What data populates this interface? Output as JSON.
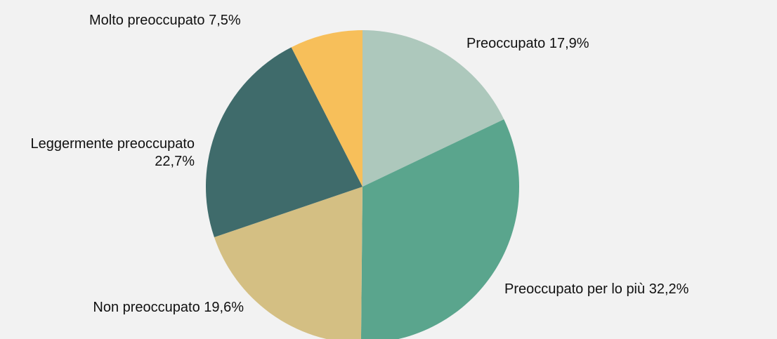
{
  "chart_data": {
    "type": "pie",
    "categories": [
      "Preoccupato",
      "Preoccupato per lo più",
      "Non preoccupato",
      "Leggermente preoccupato",
      "Molto preoccupato"
    ],
    "values": [
      17.9,
      32.2,
      19.6,
      22.7,
      7.5
    ],
    "value_labels": [
      "17,9%",
      "32,2%",
      "19,6%",
      "22,7%",
      "7,5%"
    ],
    "colors": [
      "#adc8bc",
      "#5aa58d",
      "#d4bf83",
      "#3f6b6b",
      "#f7bf5a"
    ]
  }
}
